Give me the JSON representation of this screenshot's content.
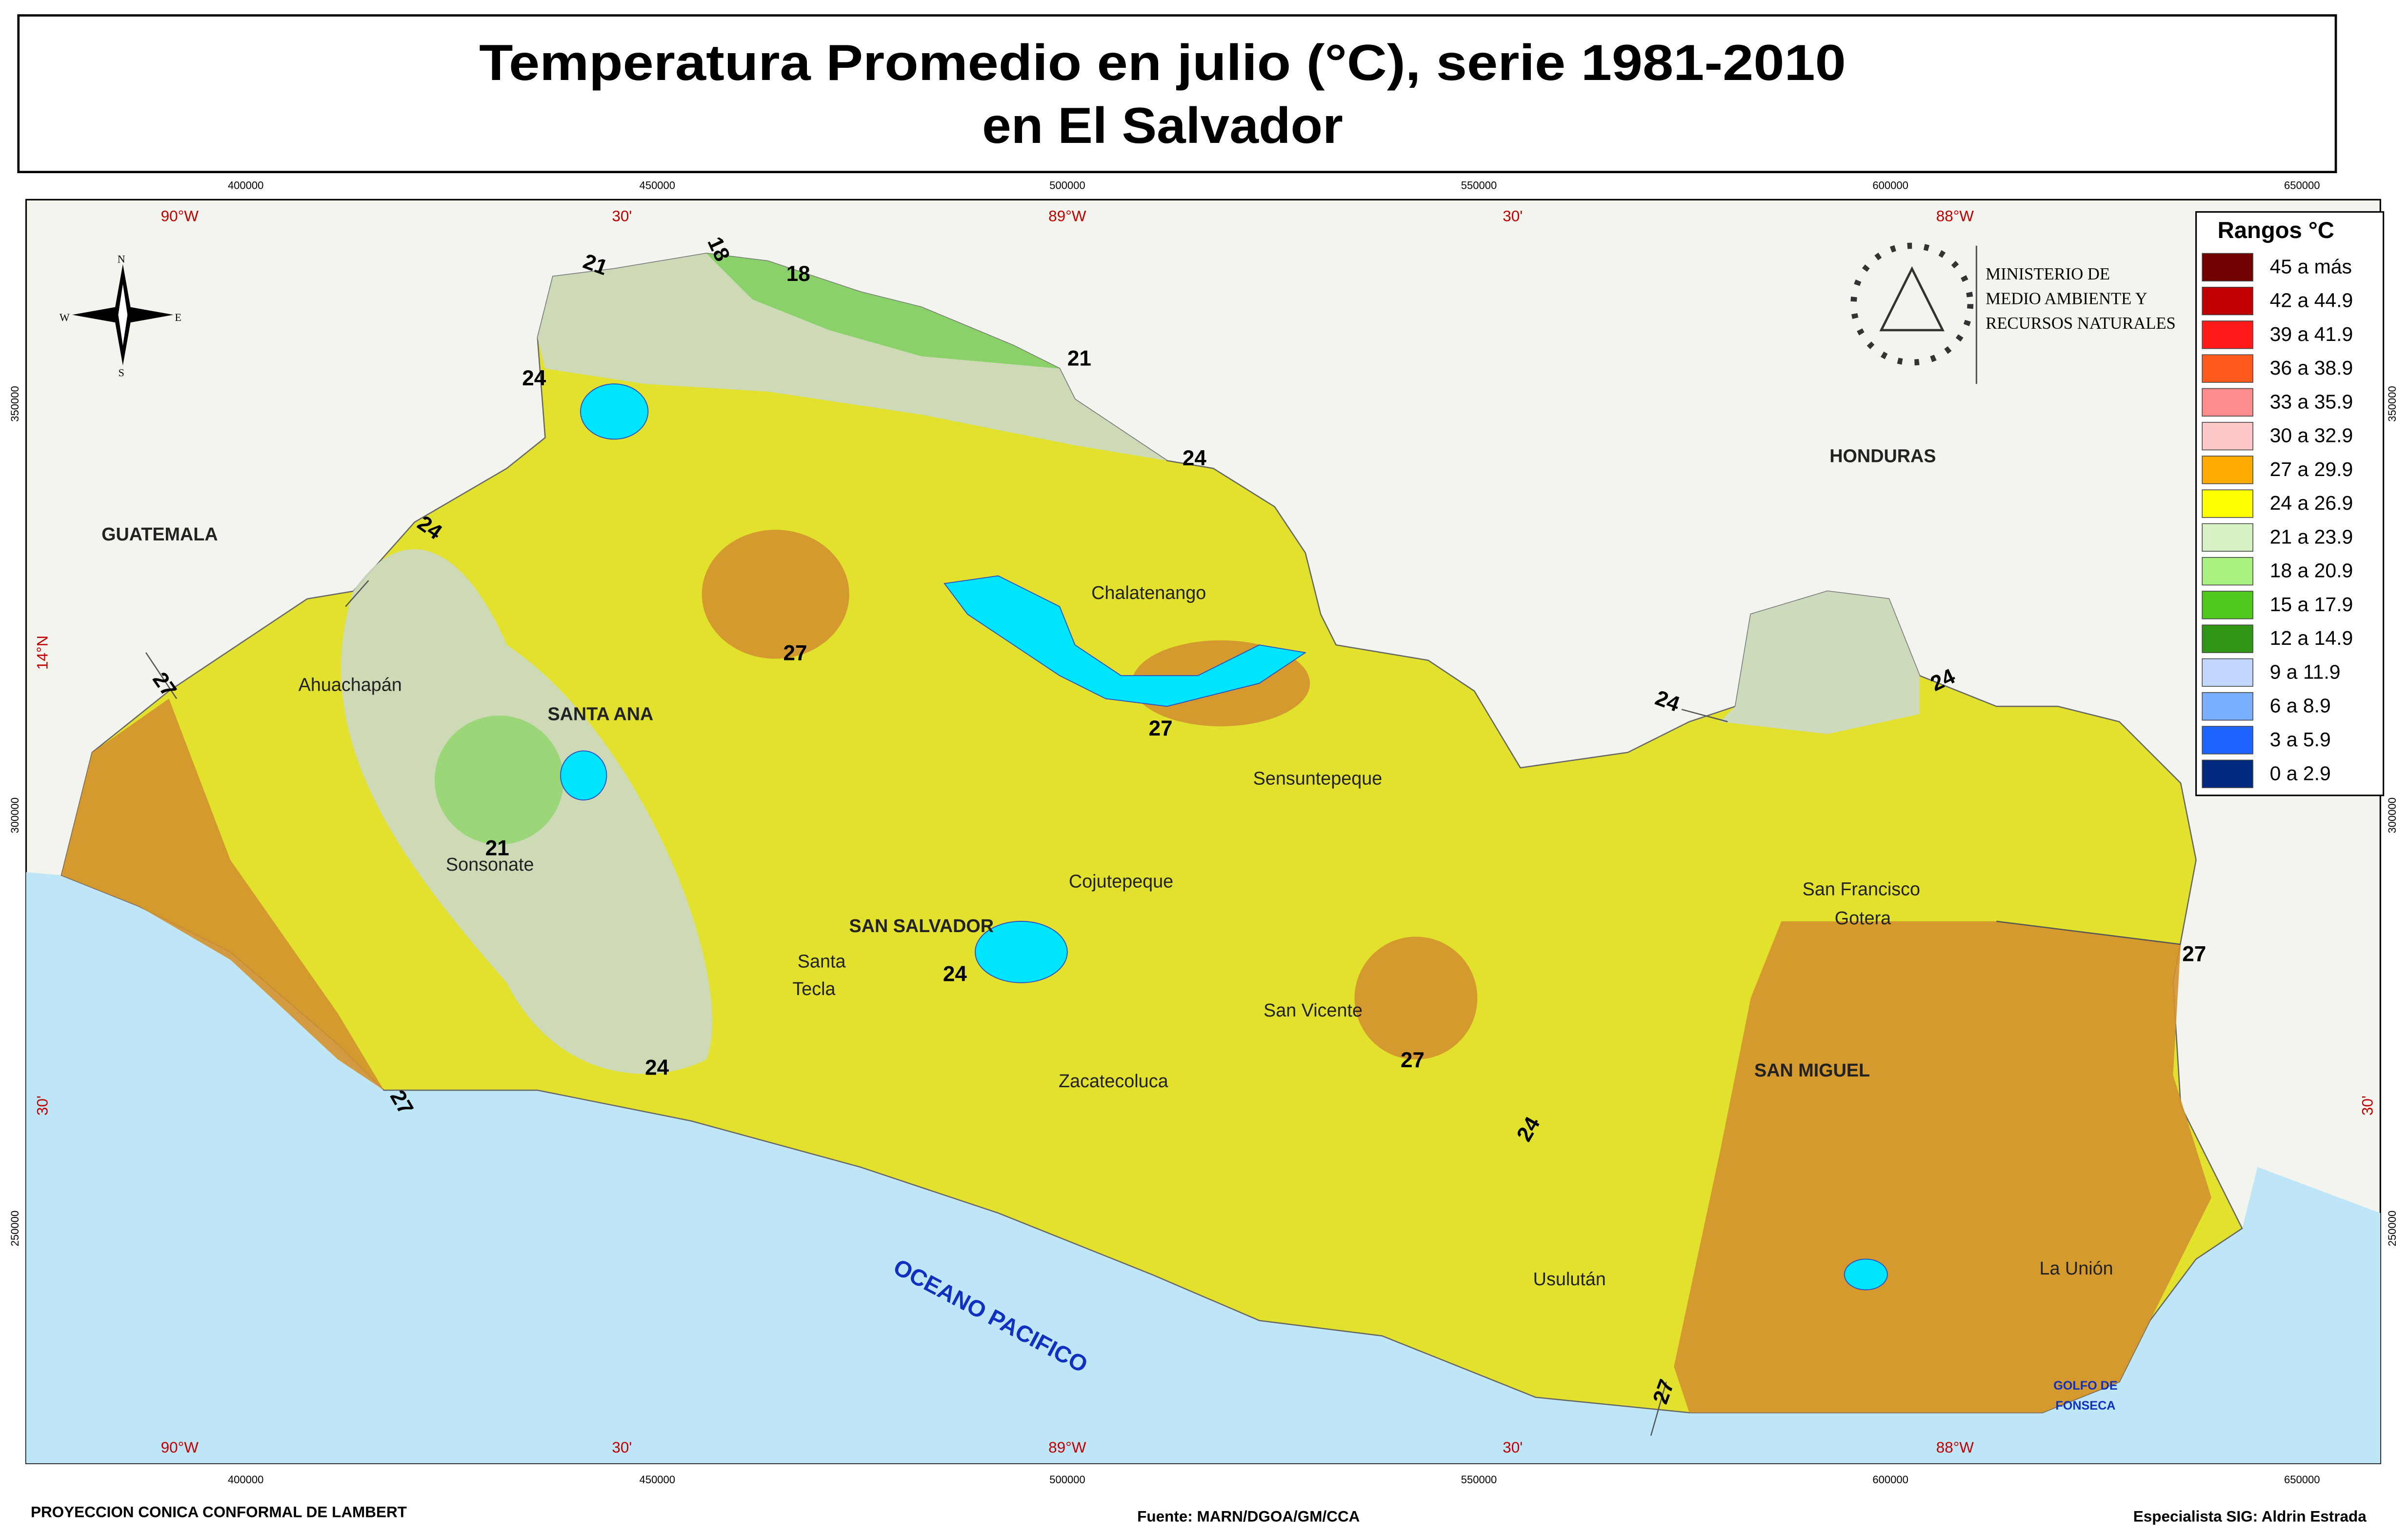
{
  "title": [
    "Temperatura Promedio en julio (°C), serie 1981-2010",
    "en El Salvador"
  ],
  "legend": {
    "title": "Rangos °C",
    "items": [
      {
        "label": "45 a más",
        "color": "#730000"
      },
      {
        "label": "42 a 44.9",
        "color": "#c00000"
      },
      {
        "label": "39 a 41.9",
        "color": "#ff1a1a"
      },
      {
        "label": "36 a 38.9",
        "color": "#ff5a1e"
      },
      {
        "label": "33 a 35.9",
        "color": "#ff8c8c"
      },
      {
        "label": "30 a 32.9",
        "color": "#ffc8c8"
      },
      {
        "label": "27 a 29.9",
        "color": "#ffaa00"
      },
      {
        "label": "24 a 26.9",
        "color": "#ffff00"
      },
      {
        "label": "21 a 23.9",
        "color": "#d6f2c4"
      },
      {
        "label": "18 a 20.9",
        "color": "#a8f080"
      },
      {
        "label": "15 a 17.9",
        "color": "#4fc81e"
      },
      {
        "label": "12 a 14.9",
        "color": "#2e9614"
      },
      {
        "label": "9 a 11.9",
        "color": "#c2d6ff"
      },
      {
        "label": "6 a 8.9",
        "color": "#7aaeff"
      },
      {
        "label": "3 a 5.9",
        "color": "#1e64ff"
      },
      {
        "label": "0 a 2.9",
        "color": "#002a80"
      }
    ]
  },
  "grid": {
    "eastings": [
      "400000",
      "450000",
      "500000",
      "550000",
      "600000",
      "650000"
    ],
    "longitudes": [
      "90°W",
      "30'",
      "89°W",
      "30'",
      "88°W"
    ],
    "northings": [
      "350000",
      "300000",
      "250000"
    ],
    "latitudes": [
      "14°N",
      "30'"
    ]
  },
  "countries": [
    "GUATEMALA",
    "HONDURAS"
  ],
  "places": [
    "Ahuachapán",
    "SANTA ANA",
    "Sonsonate",
    "SAN SALVADOR",
    "Santa",
    "Tecla",
    "Chalatenango",
    "Sensuntepeque",
    "Cojutepeque",
    "San Vicente",
    "Zacatecoluca",
    "Usulután",
    "San Francisco",
    "Gotera",
    "SAN MIGUEL",
    "La Unión"
  ],
  "isotherms": [
    "18",
    "21",
    "24",
    "27"
  ],
  "ocean": "OCEANO PACIFICO",
  "gulf": [
    "GOLFO DE",
    "FONSECA"
  ],
  "ministry": [
    "MINISTERIO DE",
    "MEDIO AMBIENTE Y",
    "RECURSOS NATURALES"
  ],
  "compass": [
    "N",
    "S",
    "E",
    "W"
  ],
  "footer": {
    "projection": "PROYECCION CONICA CONFORMAL DE LAMBERT",
    "source": "Fuente: MARN/DGOA/GM/CCA",
    "specialist": "Especialista SIG: Aldrin Estrada"
  }
}
